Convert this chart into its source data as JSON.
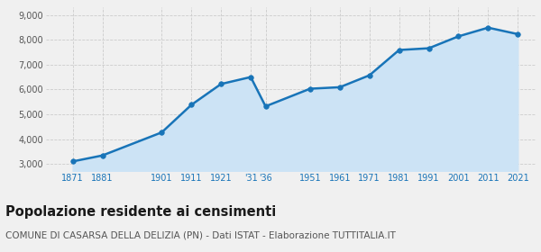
{
  "years": [
    1871,
    1881,
    1901,
    1911,
    1921,
    1931,
    1936,
    1951,
    1961,
    1971,
    1981,
    1991,
    2001,
    2011,
    2021
  ],
  "population": [
    3100,
    3340,
    4270,
    5380,
    6220,
    6500,
    5320,
    6030,
    6090,
    6570,
    7590,
    7660,
    8140,
    8490,
    8230
  ],
  "x_labels": [
    "1871",
    "1881",
    "1901",
    "1911",
    "1921",
    "'31",
    "'36",
    "1951",
    "1961",
    "1971",
    "1981",
    "1991",
    "2001",
    "2011",
    "2021"
  ],
  "ylim": [
    2700,
    9300
  ],
  "yticks": [
    3000,
    4000,
    5000,
    6000,
    7000,
    8000,
    9000
  ],
  "line_color": "#1874b8",
  "fill_color": "#cce3f5",
  "marker_color": "#1874b8",
  "background_color": "#f0f0f0",
  "grid_color": "#cccccc",
  "title": "Popolazione residente ai censimenti",
  "subtitle": "COMUNE DI CASARSA DELLA DELIZIA (PN) - Dati ISTAT - Elaborazione TUTTITALIA.IT",
  "title_fontsize": 10.5,
  "subtitle_fontsize": 7.5,
  "xlabel_color": "#1874b8",
  "ytick_color": "#555555",
  "tick_fontsize": 7.0,
  "line_width": 1.8,
  "marker_size": 4.0
}
